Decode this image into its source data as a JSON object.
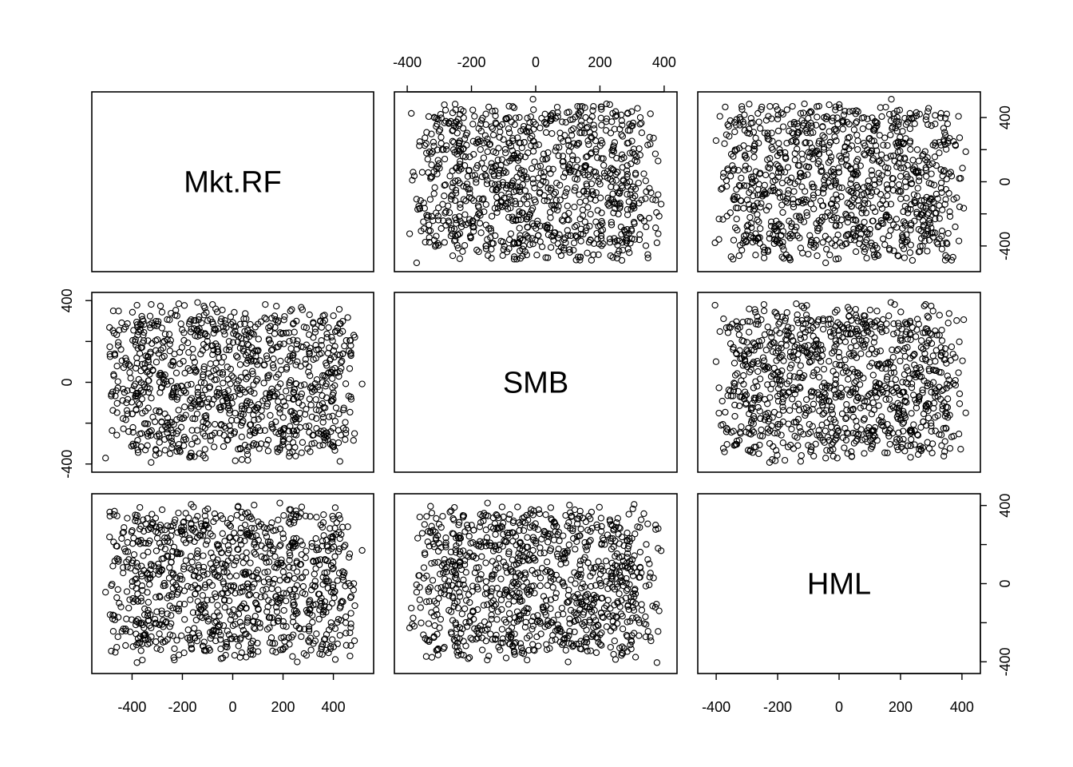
{
  "chart_data": {
    "type": "scatter",
    "kind": "pairs-scatterplot-matrix",
    "variables": [
      "Mkt.RF",
      "SMB",
      "HML"
    ],
    "axis_ranges": {
      "Mkt.RF": [
        -560,
        560
      ],
      "SMB": [
        -440,
        440
      ],
      "HML": [
        -460,
        460
      ]
    },
    "ticks": {
      "Mkt.RF": {
        "values": [
          -400,
          -200,
          0,
          200,
          400
        ],
        "labels": [
          "-400",
          "-200",
          "0",
          "200",
          "400"
        ]
      },
      "SMB": {
        "values": [
          -400,
          -200,
          0,
          200,
          400
        ],
        "labels": [
          "-400",
          "-200",
          "0",
          "200",
          "400"
        ]
      },
      "HML": {
        "values": [
          -400,
          -200,
          0,
          200,
          400
        ],
        "labels": [
          "-400",
          "-200",
          "0",
          "200",
          "400"
        ]
      }
    },
    "point_count": 1000,
    "point_distribution": {
      "Mkt.RF": {
        "min": -520,
        "max": 520
      },
      "SMB": {
        "min": -400,
        "max": 400
      },
      "HML": {
        "min": -420,
        "max": 420
      }
    },
    "marker": "open-circle",
    "grid": false,
    "legend": "none"
  }
}
